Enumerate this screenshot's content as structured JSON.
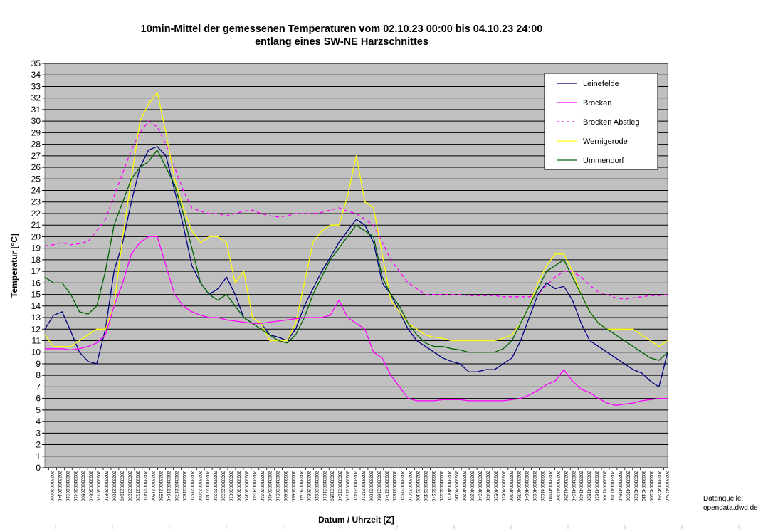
{
  "chart_data": {
    "type": "line",
    "title": "10min-Mittel der gemessenen Temperaturen vom 02.10.23 00:00 bis 04.10.23 24:00",
    "subtitle": "entlang eines SW-NE Harzschnittes",
    "xlabel": "Datum / Uhrzeit [Z]",
    "ylabel": "Temperatur [°C]",
    "ylim": [
      0,
      35
    ],
    "yticks": [
      0,
      1,
      2,
      3,
      4,
      5,
      6,
      7,
      8,
      9,
      10,
      11,
      12,
      13,
      14,
      15,
      16,
      17,
      18,
      19,
      20,
      21,
      22,
      23,
      24,
      25,
      26,
      27,
      28,
      29,
      30,
      31,
      32,
      33,
      34,
      35
    ],
    "xlim_hours": [
      0,
      72
    ],
    "x_unit": "hours since 2023-10-02 00:00 UTC",
    "x_tick_labels": [
      "202310020000",
      "202310020140",
      "202310020320",
      "202310020410",
      "202310020500",
      "202310020640",
      "202310020730",
      "202310020810",
      "202310021000",
      "202310021140",
      "202310021230",
      "202310021320",
      "202310021410",
      "202310021500",
      "202310021550",
      "202310021640",
      "202310021730",
      "202310021820",
      "202310021910",
      "202310022000",
      "202310022140",
      "202310022230",
      "202310022320",
      "202310030010",
      "202310030100",
      "202310030150",
      "202310030240",
      "202310030330",
      "202310030420",
      "202310030510",
      "202310030600",
      "202310030650",
      "202310030740",
      "202310030830",
      "202310030920",
      "202310031010",
      "202310031150",
      "202310031240",
      "202310031330",
      "202310031420",
      "202310031510",
      "202310031600",
      "202310031650",
      "202310031740",
      "202310031830",
      "202310031920",
      "202310032010",
      "202310032100",
      "202310032150",
      "202310032240",
      "202310032330",
      "202310040020",
      "202310040110",
      "202310040200",
      "202310040250",
      "202310040340",
      "202310040430",
      "202310040520",
      "202310040610",
      "202310040700",
      "202310040750",
      "202310040840",
      "202310040930",
      "202310041020",
      "202310041110",
      "202310041200",
      "202310041250",
      "202310041340",
      "202310041430",
      "202310041520",
      "202310041610",
      "202310041700",
      "202310041750",
      "202310041840",
      "202310041930",
      "202310042020",
      "202310042110",
      "202310042200",
      "202310042250",
      "202310042340"
    ],
    "legend_position": "top-right",
    "series": [
      {
        "name": "Leinefelde",
        "color": "#000080",
        "dash": "solid",
        "x": [
          0,
          1,
          2,
          3,
          4,
          5,
          6,
          7,
          8,
          9,
          10,
          11,
          12,
          13,
          14,
          15,
          16,
          17,
          18,
          19,
          20,
          21,
          22,
          23,
          24,
          25,
          26,
          27,
          28,
          29,
          30,
          31,
          32,
          33,
          34,
          35,
          36,
          37,
          38,
          39,
          40,
          41,
          42,
          43,
          44,
          45,
          46,
          47,
          48,
          49,
          50,
          51,
          52,
          53,
          54,
          55,
          56,
          57,
          58,
          59,
          60,
          61,
          62,
          63,
          64,
          65,
          66,
          67,
          68,
          69,
          70,
          71,
          72
        ],
        "y": [
          12,
          13.2,
          13.5,
          11.8,
          10,
          9.2,
          9,
          12,
          17,
          19.5,
          23,
          26,
          27.5,
          27.8,
          27,
          24,
          21,
          17.5,
          16,
          15,
          15.5,
          16.5,
          15,
          13,
          12.5,
          12.5,
          11.5,
          11.3,
          11,
          12,
          14,
          15.5,
          17,
          18.2,
          19.5,
          20.5,
          21.5,
          21,
          19.5,
          16,
          15,
          13.5,
          12,
          11,
          10.5,
          10,
          9.5,
          9.2,
          9,
          8.3,
          8.3,
          8.5,
          8.5,
          9,
          9.5,
          11,
          13,
          15,
          16,
          15.5,
          15.7,
          14.5,
          12.5,
          11,
          10.5,
          10,
          9.5,
          9,
          8.5,
          8.2,
          7.5,
          7,
          10
        ]
      },
      {
        "name": "Brocken",
        "color": "#ff00ff",
        "dash": "solid",
        "x": [
          0,
          1,
          2,
          3,
          4,
          5,
          6,
          7,
          8,
          9,
          10,
          11,
          12,
          13,
          14,
          15,
          16,
          17,
          18,
          19,
          20,
          21,
          22,
          23,
          24,
          25,
          26,
          27,
          28,
          29,
          30,
          31,
          32,
          33,
          34,
          35,
          36,
          37,
          38,
          39,
          40,
          41,
          42,
          43,
          44,
          45,
          46,
          47,
          48,
          49,
          50,
          51,
          52,
          53,
          54,
          55,
          56,
          57,
          58,
          59,
          60,
          61,
          62,
          63,
          64,
          65,
          66,
          67,
          68,
          69,
          70,
          71,
          72
        ],
        "y": [
          10.3,
          10.3,
          10.3,
          10.2,
          10.3,
          10.5,
          10.8,
          11.5,
          14,
          16,
          18.5,
          19.5,
          20,
          20,
          17.5,
          15,
          14,
          13.5,
          13.2,
          13,
          13,
          12.8,
          12.7,
          12.6,
          12.5,
          12.5,
          12.6,
          12.7,
          12.8,
          12.9,
          13,
          13,
          13,
          13.2,
          14.5,
          13,
          12.5,
          12,
          10,
          9.5,
          8,
          7,
          6,
          5.8,
          5.8,
          5.8,
          5.9,
          5.9,
          5.9,
          5.8,
          5.8,
          5.8,
          5.8,
          5.8,
          5.9,
          6,
          6.3,
          6.7,
          7.2,
          7.5,
          8.5,
          7.5,
          6.8,
          6.5,
          6,
          5.6,
          5.4,
          5.5,
          5.6,
          5.8,
          5.9,
          6,
          6
        ]
      },
      {
        "name": "Brocken Abstieg",
        "color": "#ff00ff",
        "dash": "dashed",
        "x": [
          0,
          1,
          2,
          3,
          4,
          5,
          6,
          7,
          8,
          9,
          10,
          11,
          12,
          13,
          14,
          15,
          16,
          17,
          18,
          19,
          20,
          21,
          22,
          23,
          24,
          25,
          26,
          27,
          28,
          29,
          30,
          31,
          32,
          33,
          34,
          35,
          36,
          37,
          38,
          39,
          40,
          41,
          42,
          43,
          44,
          45,
          46,
          47,
          48,
          49,
          50,
          51,
          52,
          53,
          54,
          55,
          56,
          57,
          58,
          59,
          60,
          61,
          62,
          63,
          64,
          65,
          66,
          67,
          68,
          69,
          70,
          71,
          72
        ],
        "y": [
          19.2,
          19.3,
          19.5,
          19.3,
          19.4,
          19.6,
          20.5,
          21.5,
          23.5,
          25.5,
          27.5,
          29,
          30,
          29.5,
          28,
          26,
          24,
          22.5,
          22.2,
          22,
          22,
          21.8,
          22,
          22.2,
          22.3,
          22,
          21.8,
          21.7,
          21.8,
          22,
          22,
          22,
          22.1,
          22.3,
          22.5,
          22.2,
          22,
          21.5,
          21,
          19.5,
          18,
          17,
          16,
          15.5,
          15,
          15,
          15,
          15,
          15,
          14.9,
          14.9,
          14.9,
          14.9,
          14.8,
          14.8,
          14.8,
          14.8,
          15,
          15.8,
          16.5,
          17,
          17,
          16.5,
          15.8,
          15.2,
          15,
          14.7,
          14.6,
          14.7,
          14.8,
          14.9,
          14.9,
          15
        ]
      },
      {
        "name": "Wernigerode",
        "color": "#ffff00",
        "dash": "solid",
        "x": [
          0,
          1,
          2,
          3,
          4,
          5,
          6,
          7,
          8,
          9,
          10,
          11,
          12,
          13,
          14,
          15,
          16,
          17,
          18,
          19,
          20,
          21,
          22,
          23,
          24,
          25,
          26,
          27,
          28,
          29,
          30,
          31,
          32,
          33,
          34,
          35,
          36,
          37,
          38,
          39,
          40,
          41,
          42,
          43,
          44,
          45,
          46,
          47,
          48,
          49,
          50,
          51,
          52,
          53,
          54,
          55,
          56,
          57,
          58,
          59,
          60,
          61,
          62,
          63,
          64,
          65,
          66,
          67,
          68,
          69,
          70,
          71,
          72
        ],
        "y": [
          11.5,
          10.5,
          10.5,
          10.5,
          11,
          11.5,
          12,
          12,
          14,
          20,
          25,
          30,
          31.5,
          32.5,
          29,
          25,
          22.5,
          20.5,
          19.5,
          20,
          20,
          19.5,
          16,
          17,
          13,
          12.5,
          11,
          11,
          11,
          12.5,
          16,
          19.5,
          20.5,
          21,
          21,
          23.5,
          27,
          23,
          22.5,
          18.5,
          14.5,
          13.5,
          12.5,
          12,
          11.5,
          11.3,
          11.2,
          11,
          11,
          11,
          11,
          11,
          11,
          11.2,
          11.5,
          12.5,
          14,
          16,
          17.5,
          18.5,
          18.5,
          17,
          15,
          13.5,
          12.5,
          12,
          12,
          12,
          12,
          11.5,
          11,
          10.5,
          11
        ]
      },
      {
        "name": "Ummendorf",
        "color": "#006400",
        "dash": "solid",
        "x": [
          0,
          1,
          2,
          3,
          4,
          5,
          6,
          7,
          8,
          9,
          10,
          11,
          12,
          13,
          14,
          15,
          16,
          17,
          18,
          19,
          20,
          21,
          22,
          23,
          24,
          25,
          26,
          27,
          28,
          29,
          30,
          31,
          32,
          33,
          34,
          35,
          36,
          37,
          38,
          39,
          40,
          41,
          42,
          43,
          44,
          45,
          46,
          47,
          48,
          49,
          50,
          51,
          52,
          53,
          54,
          55,
          56,
          57,
          58,
          59,
          60,
          61,
          62,
          63,
          64,
          65,
          66,
          67,
          68,
          69,
          70,
          71,
          72
        ],
        "y": [
          16.5,
          16,
          16,
          15,
          13.5,
          13.3,
          14,
          17,
          21,
          23,
          25,
          26,
          26.5,
          27.5,
          26,
          24.5,
          22,
          19,
          16,
          15,
          14.5,
          15,
          14,
          13,
          12.5,
          12,
          11.5,
          11,
          10.8,
          11.5,
          13,
          15,
          16.5,
          18,
          19,
          20,
          21,
          20.5,
          20,
          16.5,
          15,
          14,
          12.5,
          11.5,
          10.8,
          10.5,
          10.5,
          10.3,
          10.2,
          10,
          10,
          10,
          10,
          10.3,
          11,
          12.5,
          14,
          15.5,
          17,
          17.5,
          18,
          16.5,
          15,
          13.5,
          12.5,
          12,
          11.5,
          11,
          10.5,
          10,
          9.5,
          9.3,
          10
        ]
      }
    ]
  },
  "legend": {
    "items": [
      "Leinefelde",
      "Brocken",
      "Brocken Abstieg",
      "Wernigerode",
      "Ummendorf"
    ]
  },
  "source_label": "Datenquelle:",
  "source_value": "opendata.dwd.de",
  "colors": {
    "plot_background": "#c0c0c0",
    "gridline": "#000000"
  }
}
